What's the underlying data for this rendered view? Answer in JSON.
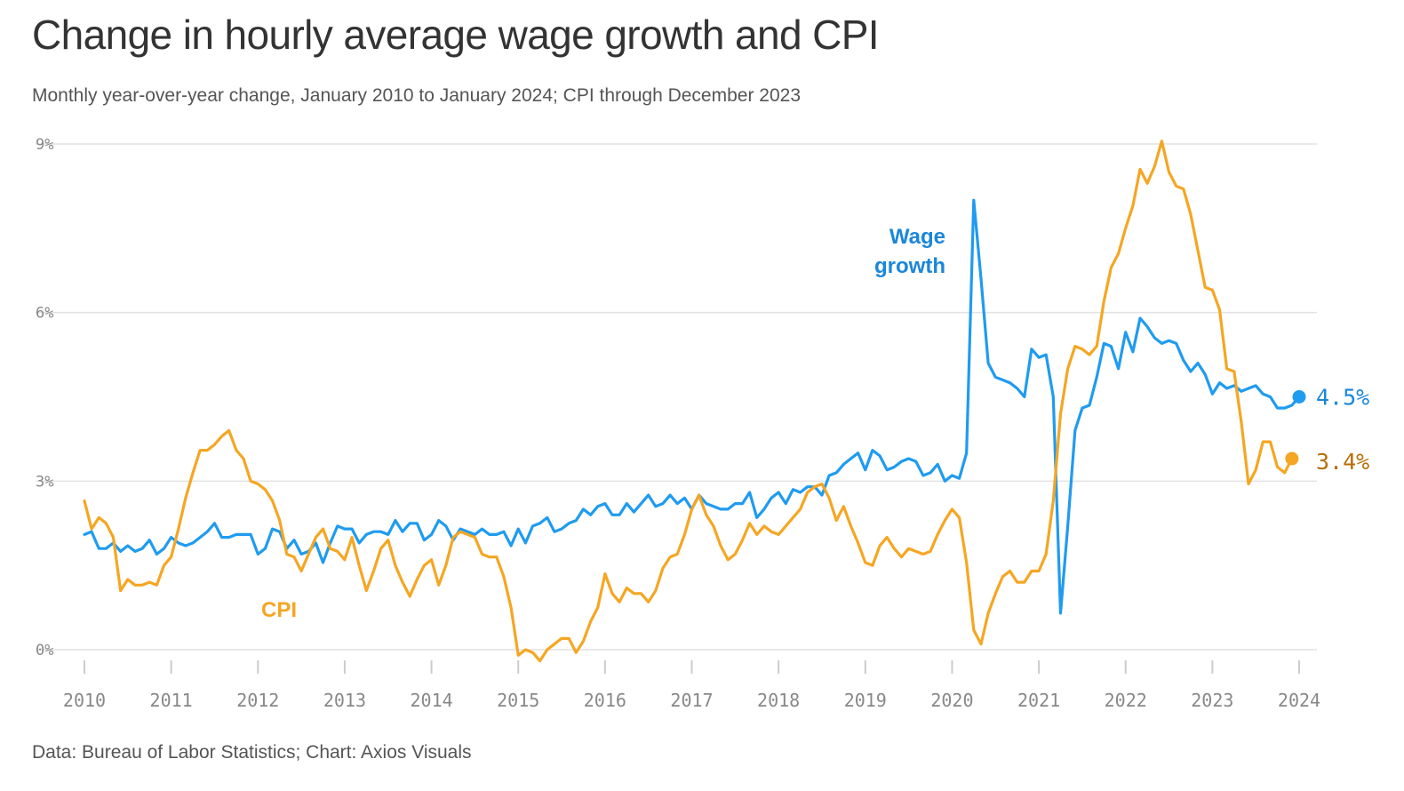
{
  "title": "Change in hourly average wage growth and CPI",
  "subtitle": "Monthly year-over-year change, January 2010 to January 2024; CPI through December 2023",
  "source": "Data: Bureau of Labor Statistics; Chart: Axios Visuals",
  "colors": {
    "wage": "#1f9bf0",
    "cpi": "#f5a623",
    "wage_label": "#1a87d9",
    "cpi_end_label": "#b86e05",
    "grid": "#e2e2e2",
    "axis_text": "#888888"
  },
  "chart_data": {
    "type": "line",
    "title": "Change in hourly average wage growth and CPI",
    "xlabel": "",
    "ylabel": "",
    "x_start": "2010-01",
    "x_unit": "month",
    "xlim": [
      2010,
      2024
    ],
    "ylim": [
      -0.5,
      9.2
    ],
    "y_ticks": [
      0,
      3,
      6,
      9
    ],
    "y_tick_labels": [
      "0%",
      "3%",
      "6%",
      "9%"
    ],
    "x_ticks": [
      2010,
      2011,
      2012,
      2013,
      2014,
      2015,
      2016,
      2017,
      2018,
      2019,
      2020,
      2021,
      2022,
      2023,
      2024
    ],
    "x_tick_labels": [
      "2010",
      "2011",
      "2012",
      "2013",
      "2014",
      "2015",
      "2016",
      "2017",
      "2018",
      "2019",
      "2020",
      "2021",
      "2022",
      "2023",
      "2024"
    ],
    "series": [
      {
        "name": "Wage growth",
        "label": "Wage growth",
        "label_lines": [
          "Wage",
          "growth"
        ],
        "end_label": "4.5%",
        "values": [
          2.05,
          2.1,
          1.8,
          1.8,
          1.9,
          1.75,
          1.85,
          1.75,
          1.8,
          1.95,
          1.7,
          1.8,
          2.0,
          1.9,
          1.85,
          1.9,
          2.0,
          2.1,
          2.25,
          2.0,
          2.0,
          2.05,
          2.05,
          2.05,
          1.7,
          1.8,
          2.15,
          2.1,
          1.8,
          1.95,
          1.7,
          1.75,
          1.9,
          1.55,
          1.9,
          2.2,
          2.15,
          2.15,
          1.9,
          2.05,
          2.1,
          2.1,
          2.05,
          2.3,
          2.1,
          2.25,
          2.25,
          1.95,
          2.05,
          2.3,
          2.2,
          1.95,
          2.15,
          2.1,
          2.05,
          2.15,
          2.05,
          2.05,
          2.1,
          1.85,
          2.15,
          1.9,
          2.2,
          2.25,
          2.35,
          2.1,
          2.15,
          2.25,
          2.3,
          2.5,
          2.4,
          2.55,
          2.6,
          2.4,
          2.4,
          2.6,
          2.45,
          2.6,
          2.75,
          2.55,
          2.6,
          2.75,
          2.6,
          2.7,
          2.5,
          2.75,
          2.6,
          2.55,
          2.5,
          2.5,
          2.6,
          2.6,
          2.8,
          2.35,
          2.5,
          2.7,
          2.8,
          2.6,
          2.85,
          2.8,
          2.9,
          2.9,
          2.75,
          3.1,
          3.15,
          3.3,
          3.4,
          3.5,
          3.2,
          3.55,
          3.45,
          3.2,
          3.25,
          3.35,
          3.4,
          3.35,
          3.1,
          3.15,
          3.3,
          3.0,
          3.1,
          3.05,
          3.5,
          8.0,
          6.6,
          5.1,
          4.85,
          4.8,
          4.75,
          4.65,
          4.5,
          5.35,
          5.2,
          5.25,
          4.5,
          0.65,
          2.2,
          3.9,
          4.3,
          4.35,
          4.85,
          5.45,
          5.4,
          5.0,
          5.65,
          5.3,
          5.9,
          5.75,
          5.55,
          5.45,
          5.5,
          5.45,
          5.15,
          4.95,
          5.1,
          4.9,
          4.55,
          4.75,
          4.65,
          4.7,
          4.6,
          4.65,
          4.7,
          4.55,
          4.5,
          4.3,
          4.3,
          4.35,
          4.5
        ]
      },
      {
        "name": "CPI",
        "label": "CPI",
        "end_label": "3.4%",
        "values": [
          2.65,
          2.15,
          2.35,
          2.25,
          2.0,
          1.05,
          1.25,
          1.15,
          1.15,
          1.2,
          1.15,
          1.5,
          1.65,
          2.15,
          2.7,
          3.15,
          3.55,
          3.55,
          3.65,
          3.8,
          3.9,
          3.55,
          3.4,
          3.0,
          2.95,
          2.85,
          2.65,
          2.3,
          1.7,
          1.65,
          1.4,
          1.7,
          2.0,
          2.15,
          1.8,
          1.75,
          1.6,
          2.0,
          1.5,
          1.05,
          1.4,
          1.8,
          1.95,
          1.5,
          1.2,
          0.95,
          1.25,
          1.5,
          1.6,
          1.15,
          1.5,
          2.0,
          2.1,
          2.05,
          2.0,
          1.7,
          1.65,
          1.65,
          1.3,
          0.75,
          -0.1,
          0.0,
          -0.05,
          -0.2,
          0.0,
          0.1,
          0.2,
          0.2,
          -0.05,
          0.15,
          0.5,
          0.75,
          1.35,
          1.0,
          0.85,
          1.1,
          1.0,
          1.0,
          0.85,
          1.05,
          1.45,
          1.65,
          1.7,
          2.05,
          2.5,
          2.75,
          2.4,
          2.2,
          1.85,
          1.6,
          1.7,
          1.95,
          2.25,
          2.05,
          2.2,
          2.1,
          2.05,
          2.2,
          2.35,
          2.5,
          2.8,
          2.9,
          2.95,
          2.7,
          2.3,
          2.55,
          2.2,
          1.9,
          1.55,
          1.5,
          1.85,
          2.0,
          1.8,
          1.65,
          1.8,
          1.75,
          1.7,
          1.75,
          2.05,
          2.3,
          2.5,
          2.35,
          1.55,
          0.35,
          0.1,
          0.65,
          1.0,
          1.3,
          1.4,
          1.2,
          1.2,
          1.4,
          1.4,
          1.7,
          2.65,
          4.2,
          5.0,
          5.4,
          5.35,
          5.25,
          5.4,
          6.2,
          6.8,
          7.05,
          7.5,
          7.9,
          8.55,
          8.3,
          8.6,
          9.05,
          8.5,
          8.25,
          8.2,
          7.75,
          7.1,
          6.45,
          6.4,
          6.05,
          5.0,
          4.95,
          4.05,
          2.95,
          3.2,
          3.7,
          3.7,
          3.25,
          3.15,
          3.4
        ]
      }
    ]
  }
}
